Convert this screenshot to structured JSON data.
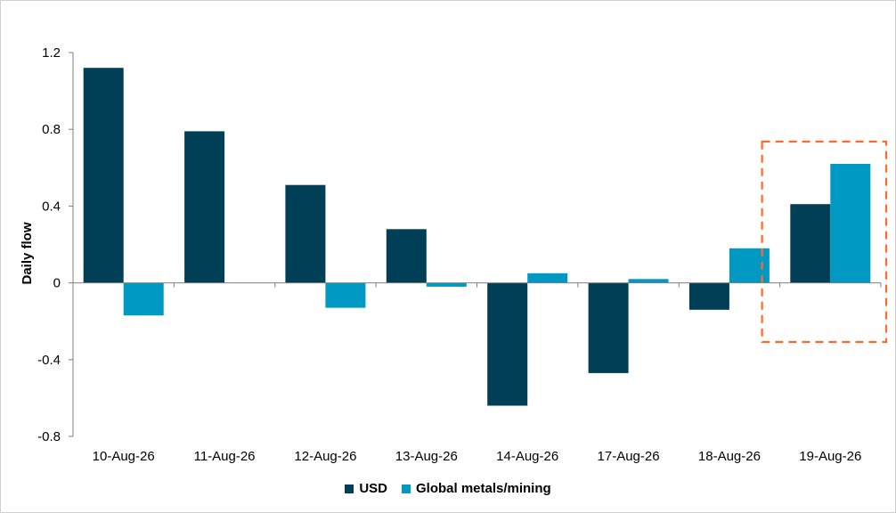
{
  "chart_data": {
    "type": "bar",
    "categories": [
      "10-Aug-26",
      "11-Aug-26",
      "12-Aug-26",
      "13-Aug-26",
      "14-Aug-26",
      "17-Aug-26",
      "18-Aug-26",
      "19-Aug-26"
    ],
    "series": [
      {
        "name": "USD",
        "color": "#003f55",
        "values": [
          1.12,
          0.79,
          0.51,
          0.28,
          -0.64,
          -0.47,
          -0.14,
          0.41
        ]
      },
      {
        "name": "Global metals/mining",
        "color": "#0099c4",
        "values": [
          -0.17,
          0.0,
          -0.13,
          -0.02,
          0.05,
          0.02,
          0.18,
          0.62
        ]
      }
    ],
    "ylabel": "Daily flow",
    "xlabel": "",
    "ylim": [
      -0.8,
      1.2
    ],
    "yticks": [
      "-0.8",
      "-0.4",
      "0",
      "0.4",
      "0.8",
      "1.2"
    ],
    "ytick_values": [
      -0.8,
      -0.4,
      0,
      0.4,
      0.8,
      1.2
    ],
    "grid": false,
    "legend": "bottom-center",
    "highlight": {
      "category": "19-Aug-26",
      "style": "dashed box",
      "color": "#ff6a2b"
    }
  }
}
